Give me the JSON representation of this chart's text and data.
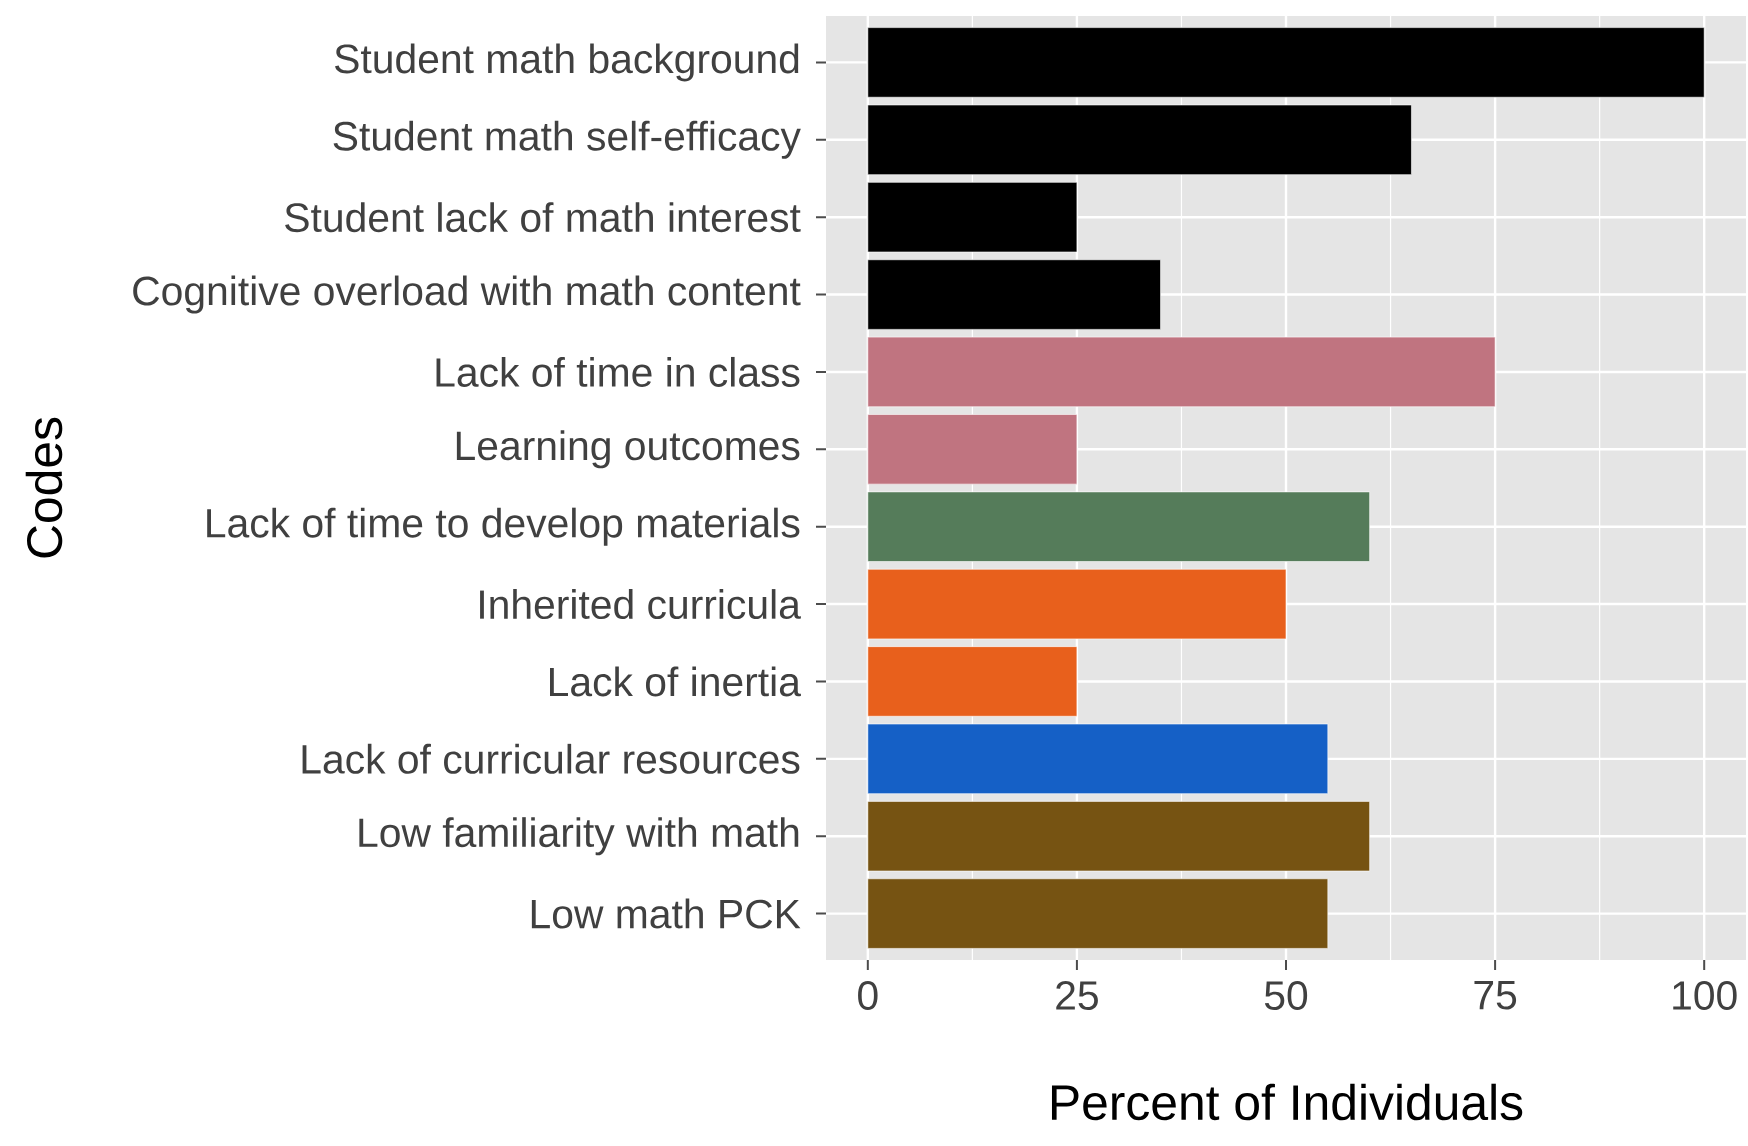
{
  "chart_data": {
    "type": "bar",
    "orientation": "horizontal",
    "xlabel": "Percent of Individuals",
    "ylabel": "Codes",
    "categories": [
      "Student math background",
      "Student math self-efficacy",
      "Student lack of math interest",
      "Cognitive overload with math content",
      "Lack of time in class",
      "Learning outcomes",
      "Lack of time to develop materials",
      "Inherited curricula",
      "Lack of inertia",
      "Lack of curricular resources",
      "Low familiarity with math",
      "Low math PCK"
    ],
    "values": [
      100,
      65,
      25,
      35,
      75,
      25,
      60,
      50,
      25,
      55,
      60,
      55
    ],
    "colors": [
      "#000000",
      "#000000",
      "#000000",
      "#000000",
      "#c07480",
      "#c07480",
      "#557c5a",
      "#e8601c",
      "#e8601c",
      "#1560c6",
      "#765312",
      "#765312"
    ],
    "xlim": [
      -5,
      105
    ],
    "xticks": [
      0,
      25,
      50,
      75,
      100
    ],
    "grid": true
  }
}
